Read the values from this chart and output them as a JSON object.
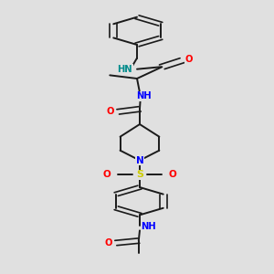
{
  "bg_color": "#e0e0e0",
  "bond_color": "#1a1a1a",
  "N_color": "#0000ff",
  "O_color": "#ff0000",
  "S_color": "#cccc00",
  "NH_teal_color": "#008b8b",
  "lw": 1.4,
  "dlw": 1.2,
  "doff": 0.006,
  "figsize": [
    3.0,
    3.0
  ],
  "dpi": 100,
  "xlim": [
    0.25,
    0.75
  ],
  "ylim": [
    0.02,
    1.0
  ]
}
